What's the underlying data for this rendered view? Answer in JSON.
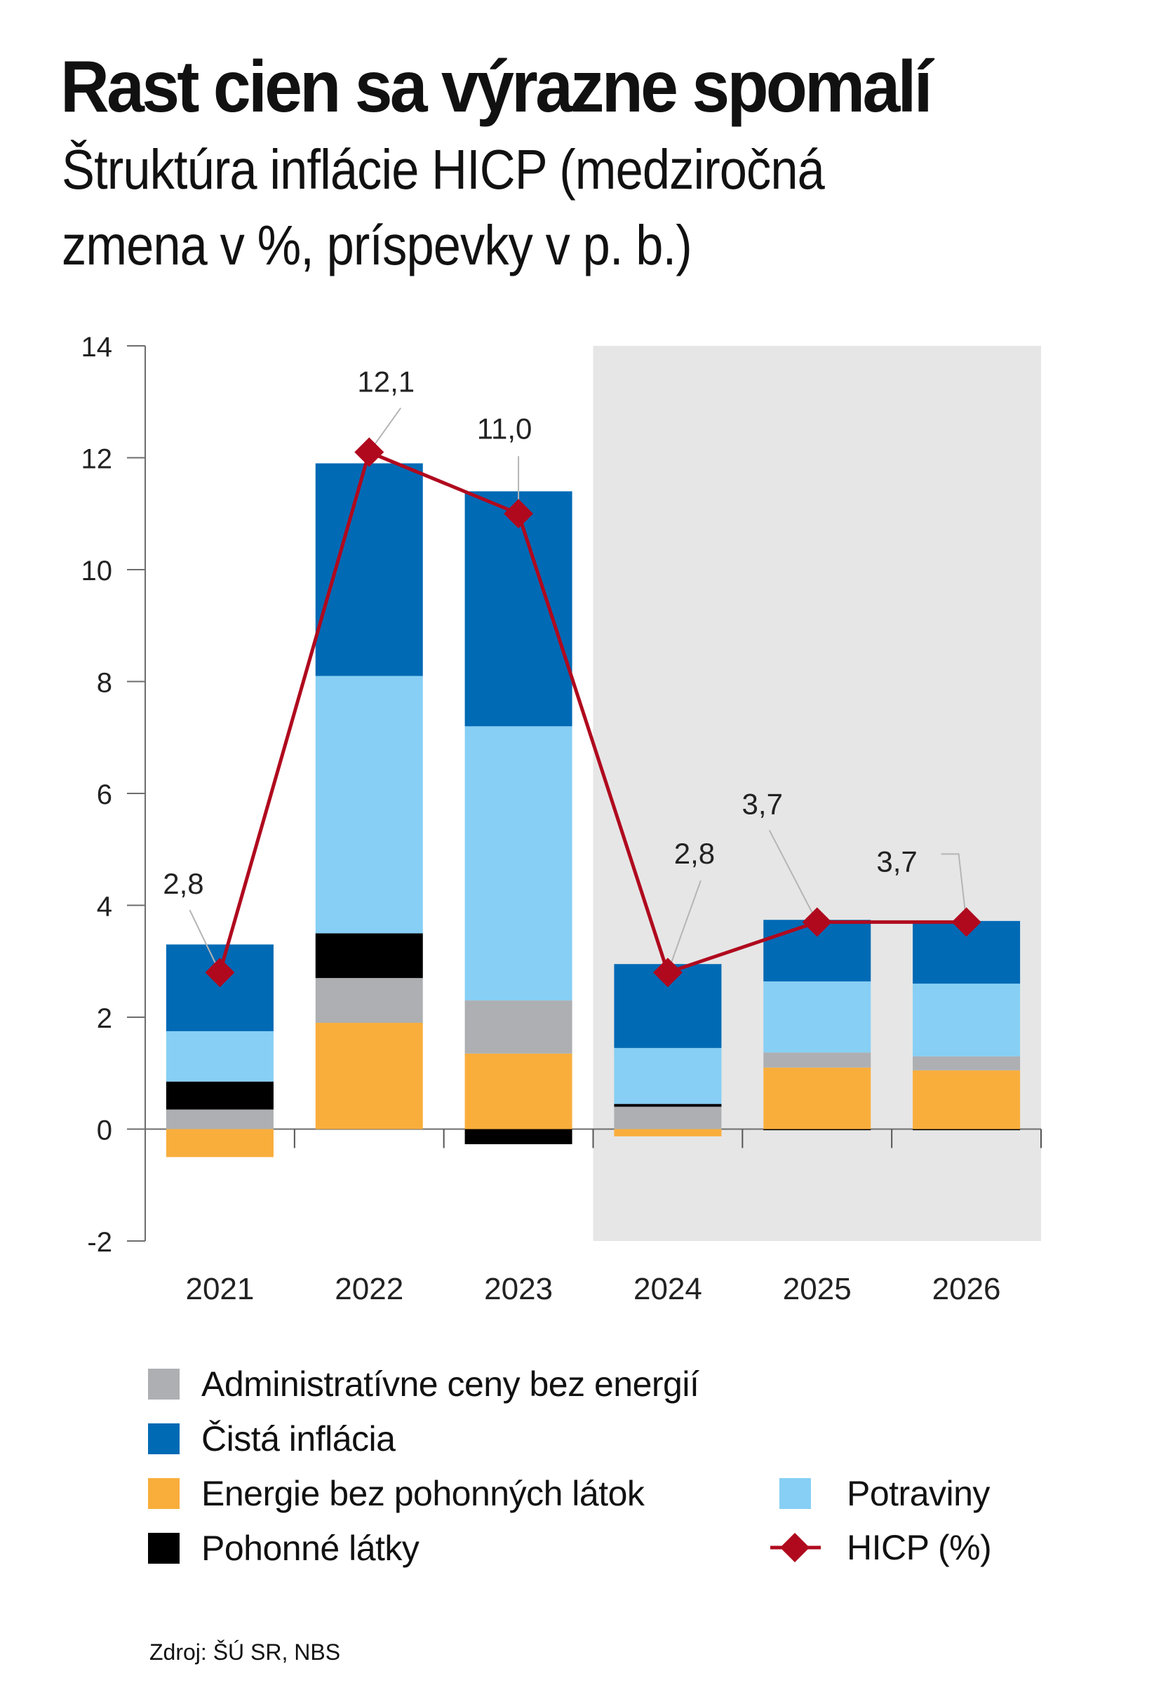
{
  "header": {
    "title": "Rast cien sa výrazne spomalí",
    "subtitle_line1": "Štruktúra inflácie HICP (medziročná",
    "subtitle_line2": "zmena v %, príspevky v p. b.)"
  },
  "colors": {
    "admin": "#ADAFB2",
    "core": "#006AB5",
    "energy": "#F9AE3C",
    "fuel": "#000000",
    "food": "#87CFF5",
    "hicp": "#B0091E",
    "forecast_shade": "#E6E6E6"
  },
  "chart_data": {
    "type": "bar",
    "stacked": true,
    "title": "Rast cien sa výrazne spomalí",
    "subtitle": "Štruktúra inflácie HICP (medziročná zmena v %, príspevky v p. b.)",
    "xlabel": "",
    "ylabel": "",
    "categories": [
      "2021",
      "2022",
      "2023",
      "2024",
      "2025",
      "2026"
    ],
    "ylim": [
      -2,
      14
    ],
    "yticks": [
      -2,
      0,
      2,
      4,
      6,
      8,
      10,
      12,
      14
    ],
    "ytick_labels": [
      "-2",
      "0",
      "2",
      "4",
      "6",
      "8",
      "10",
      "12",
      "14"
    ],
    "grid": false,
    "forecast_shaded_categories": [
      "2024",
      "2025",
      "2026"
    ],
    "series": [
      {
        "key": "energy",
        "name": "Energie bez pohonných látok",
        "values": [
          -0.5,
          1.9,
          1.35,
          -0.13,
          1.1,
          1.05
        ]
      },
      {
        "key": "admin",
        "name": "Administratívne ceny bez energií",
        "values": [
          0.35,
          0.8,
          0.95,
          0.4,
          0.27,
          0.25
        ]
      },
      {
        "key": "fuel",
        "name": "Pohonné látky",
        "values": [
          0.5,
          0.8,
          -0.27,
          0.05,
          -0.02,
          -0.02
        ]
      },
      {
        "key": "food",
        "name": "Potraviny",
        "values": [
          0.9,
          4.6,
          4.9,
          1.0,
          1.27,
          1.3
        ]
      },
      {
        "key": "core",
        "name": "Čistá inflácia",
        "values": [
          1.55,
          3.8,
          4.2,
          1.5,
          1.1,
          1.12
        ]
      }
    ],
    "line": {
      "key": "hicp",
      "name": "HICP (%)",
      "values": [
        2.8,
        12.1,
        11.0,
        2.8,
        3.7,
        3.7
      ],
      "labels": [
        "2,8",
        "12,1",
        "11,0",
        "2,8",
        "3,7",
        "3,7"
      ]
    },
    "legend": {
      "placement": "bottom",
      "items": [
        {
          "key": "admin",
          "label": "Administratívne ceny bez energií"
        },
        {
          "key": "core",
          "label": "Čistá inflácia"
        },
        {
          "key": "energy",
          "label": "Energie bez pohonných látok"
        },
        {
          "key": "fuel",
          "label": "Pohonné látky"
        },
        {
          "key": "food",
          "label": "Potraviny"
        },
        {
          "key": "hicp",
          "label": "HICP (%)"
        }
      ]
    }
  },
  "footer": {
    "source": "Zdroj: ŠÚ SR, NBS"
  }
}
